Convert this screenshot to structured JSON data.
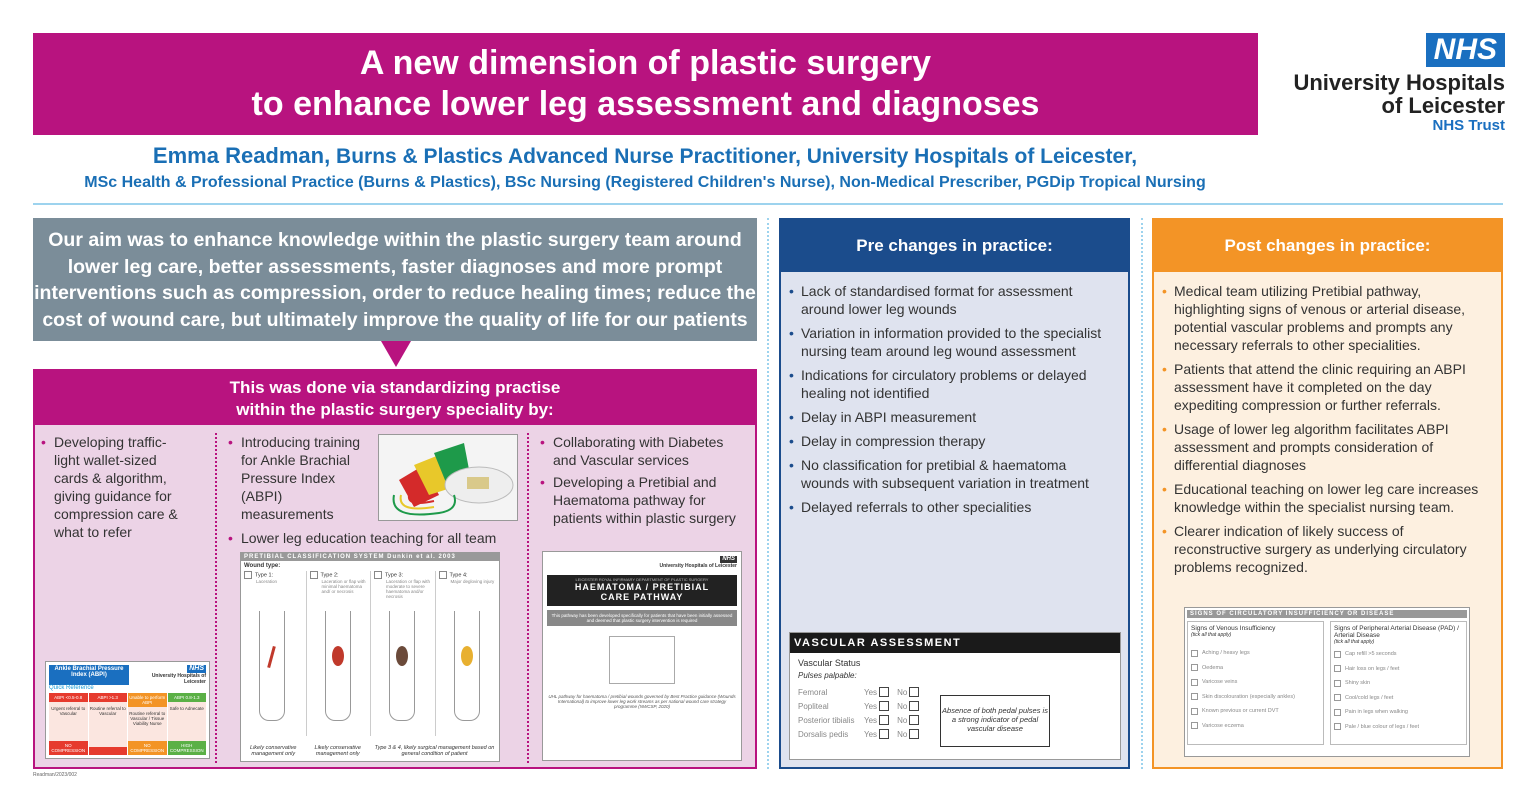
{
  "title": {
    "line1": "A new dimension of plastic surgery",
    "line2": "to enhance lower leg assessment and diagnoses"
  },
  "logo": {
    "nhs": "NHS",
    "org1": "University Hospitals",
    "org2": "of Leicester",
    "trust": "NHS Trust"
  },
  "author": {
    "name": "Emma Readman,",
    "role": " Burns & Plastics Advanced Nurse Practitioner, University Hospitals of Leicester,",
    "quals": "MSc Health & Professional Practice (Burns & Plastics), BSc Nursing (Registered Children's Nurse), Non-Medical Prescriber, PGDip Tropical Nursing"
  },
  "aim": "Our aim was to enhance knowledge within the plastic surgery team around lower leg care, better assessments, faster diagnoses and more prompt interventions such as compression, order to reduce healing times; reduce the cost of wound care, but ultimately improve the quality of life for our patients",
  "via": {
    "heading1": "This was done via standardizing practise",
    "heading2": "within the plastic surgery speciality by:",
    "col1": [
      "Developing traffic-light wallet-sized cards & algorithm, giving guidance for compression care & what to refer"
    ],
    "col2": [
      "Introducing training for Ankle Brachial Pressure Index (ABPI) measurements",
      "Lower leg education teaching for all team"
    ],
    "col3": [
      "Collaborating with Diabetes and Vascular services",
      "Developing a Pretibial and Haematoma pathway for patients within plastic surgery"
    ]
  },
  "abpi_card": {
    "title": "Ankle Brachial Pressure Index (ABPI)",
    "subtitle": "Quick Reference",
    "org": "University Hospitals of Leicester",
    "cols": [
      {
        "head": "ABPI <0.5-0.8",
        "body": "Urgent referral to Vascular",
        "foot": "NO COMPRESSION",
        "color": "#e63b2e"
      },
      {
        "head": "ABPI >1.3",
        "body": "Routine referral to Vascular",
        "foot": "",
        "color": "#e63b2e"
      },
      {
        "head": "Unable to perform ABPI",
        "body": "Routine referral to Vascular / Tissue Viability Nurse",
        "foot": "NO COMPRESSION",
        "color": "#f39426"
      },
      {
        "head": "ABPI 0.8-1.3",
        "body": "Safe to Adnecate",
        "foot": "HIGH COMPRESSION",
        "color": "#5bb046"
      }
    ]
  },
  "pretibial": {
    "title": "PRETIBIAL CLASSIFICATION SYSTEM Dunkin et al. 2003",
    "wound_type": "Wound type:",
    "types": [
      {
        "name": "Type 1:",
        "desc": "Laceration"
      },
      {
        "name": "Type 2:",
        "desc": "Laceration or flap with minimal haematoma and/ or necrosis"
      },
      {
        "name": "Type 3:",
        "desc": "Laceration or flap with moderate to severe haematoma and/or necrosis"
      },
      {
        "name": "Type 4:",
        "desc": "Major degloving injury"
      }
    ],
    "notes": [
      "Likely conservative management only",
      "Likely conservative management only",
      "Type 3 & 4, likely surgical management based on general condition of patient"
    ]
  },
  "pathway": {
    "org": "University Hospitals of Leicester",
    "dept": "LEICESTER ROYAL INFIRMARY DEPARTMENT OF PLASTIC SURGERY",
    "title1": "HAEMATOMA / PRETIBIAL",
    "title2": "CARE PATHWAY",
    "desc": "This pathway has been developed specifically for patients that have been initially assessed and deemed that plastic surgery intervention is required",
    "footer": "UHL pathway for haematoma / pretibial wounds governed by Best Practice guidance (Wounds International) to improve lower leg work streams as per national wound care strategy programme (NWCSP, 2020)"
  },
  "pre": {
    "heading": "Pre changes in practice:",
    "items": [
      "Lack of standardised format for assessment around lower leg wounds",
      "Variation in information provided to the specialist nursing team around leg wound assessment",
      "Indications for circulatory problems or delayed healing not identified",
      "Delay in ABPI measurement",
      "Delay in compression therapy",
      "No classification for pretibial & haematoma wounds with subsequent variation in treatment",
      "Delayed referrals to other specialities"
    ]
  },
  "vascular": {
    "title": "VASCULAR ASSESSMENT",
    "status": "Vascular Status",
    "pulses": "Pulses palpable:",
    "yes": "Yes",
    "no": "No",
    "rows": [
      "Femoral",
      "Popliteal",
      "Posterior tibialis",
      "Dorsalis pedis"
    ],
    "note": "Absence of both pedal pulses is a strong indicator of pedal vascular disease"
  },
  "post": {
    "heading": "Post changes in practice:",
    "items": [
      "Medical team utilizing Pretibial pathway, highlighting signs of venous or arterial disease, potential vascular problems and prompts any necessary referrals to other specialities.",
      "Patients that attend the clinic requiring an ABPI assessment have it completed on the day expediting compression or further referrals.",
      "Usage of lower leg algorithm facilitates ABPI assessment and prompts consideration of differential diagnoses",
      "Educational teaching on lower leg care increases knowledge within the specialist nursing team.",
      "Clearer indication of likely success of reconstructive surgery as underlying circulatory problems recognized."
    ]
  },
  "signs": {
    "title": "SIGNS OF CIRCULATORY INSUFFICIENCY OR DISEASE",
    "tick": "(tick all that apply)",
    "venous": {
      "head": "Signs of Venous Insufficiency",
      "items": [
        "Aching / heavy legs",
        "Oedema",
        "Varicose veins",
        "Skin discolouration (especially ankles)",
        "Known previous or current DVT",
        "Varicose eczema"
      ]
    },
    "arterial": {
      "head": "Signs of Peripheral Arterial Disease (PAD) / Arterial Disease",
      "items": [
        "Cap refill >5 seconds",
        "Hair loss on legs / feet",
        "Shiny skin",
        "Cool/cold legs / feet",
        "Pain in legs when walking",
        "Pale / blue colour of legs / feet"
      ]
    }
  },
  "footnote": "Readman/2023/002",
  "colors": {
    "magenta": "#b8137f",
    "navy": "#1b4c8c",
    "orange": "#f39426",
    "grey": "#7b8d99",
    "nhs_blue": "#1a6fc0"
  }
}
